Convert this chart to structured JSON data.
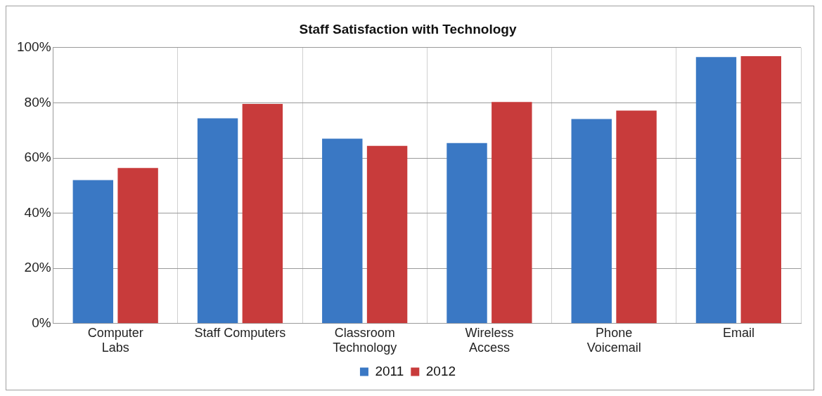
{
  "chart_data": {
    "type": "bar",
    "title": "Staff Satisfaction with Technology",
    "categories": [
      "Computer\nLabs",
      "Staff Computers",
      "Classroom\nTechnology",
      "Wireless\nAccess",
      "Phone\nVoicemail",
      "Email"
    ],
    "series": [
      {
        "name": "2011",
        "color": "#3a78c4",
        "values": [
          52,
          74.4,
          67,
          65.4,
          74.1,
          96.6
        ]
      },
      {
        "name": "2012",
        "color": "#c83b3b",
        "values": [
          56.4,
          79.6,
          64.4,
          80.3,
          77.2,
          96.9
        ]
      }
    ],
    "ylim": [
      0,
      100
    ],
    "yticks": [
      {
        "value": 0,
        "label": "0%"
      },
      {
        "value": 20,
        "label": "20%"
      },
      {
        "value": 40,
        "label": "40%"
      },
      {
        "value": 60,
        "label": "60%"
      },
      {
        "value": 80,
        "label": "80%"
      },
      {
        "value": 100,
        "label": "100%"
      }
    ],
    "grid": true,
    "legend": "bottom"
  }
}
